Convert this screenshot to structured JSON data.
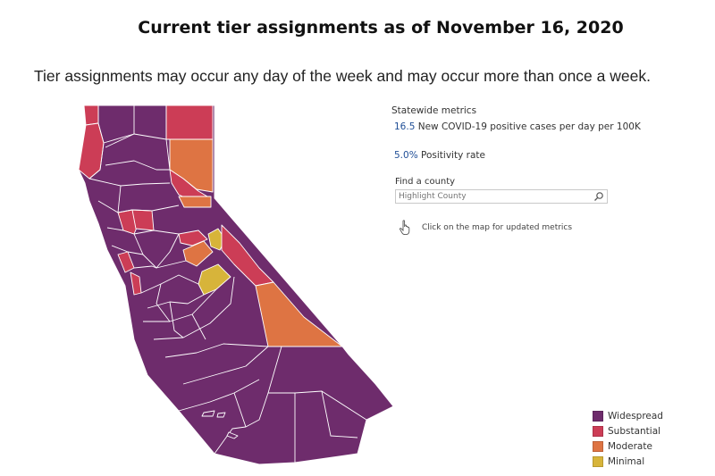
{
  "header": {
    "title": "Current tier assignments as of November 16, 2020",
    "subtitle": "Tier assignments may occur any day of the week and may occur more than once a week."
  },
  "metrics": {
    "heading": "Statewide metrics",
    "cases_value": "16.5",
    "cases_label": "New COVID-19 positive cases per day per 100K",
    "positivity_value": "5.0%",
    "positivity_label": "Positivity rate"
  },
  "search": {
    "label": "Find a county",
    "placeholder": "Highlight County",
    "icon": "magnifier-icon"
  },
  "click_hint": {
    "text": "Click on the map for updated metrics",
    "icon": "pointer-hand-icon"
  },
  "legend": {
    "items": [
      {
        "label": "Widespread",
        "color": "#6e2c6c"
      },
      {
        "label": "Substantial",
        "color": "#cc3d56"
      },
      {
        "label": "Moderate",
        "color": "#de7443"
      },
      {
        "label": "Minimal",
        "color": "#d7b43a"
      }
    ]
  },
  "colors": {
    "widespread": "#6e2c6c",
    "substantial": "#cc3d56",
    "moderate": "#de7443",
    "minimal": "#d7b43a",
    "metric_number": "#1f4e96"
  }
}
